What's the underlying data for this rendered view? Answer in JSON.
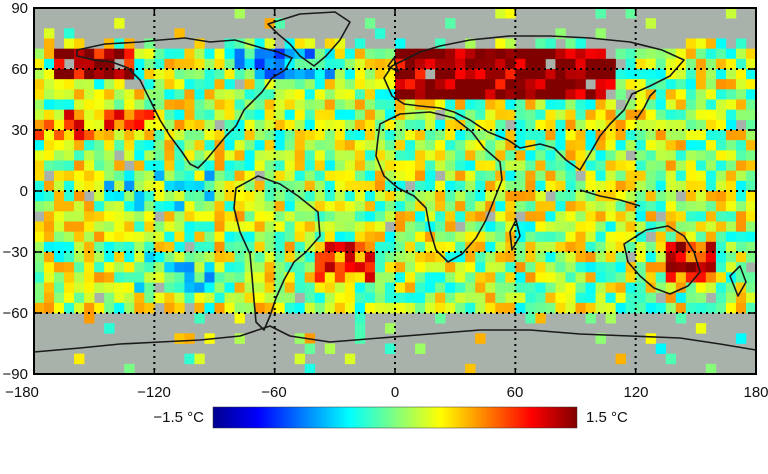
{
  "map": {
    "type": "gridded-anomaly-map",
    "projection": "equirectangular",
    "lon_range": [
      -180,
      180
    ],
    "lat_range": [
      -90,
      90
    ],
    "no_data_color": "#a9b1ab",
    "gridlines": "dotted at 60° longitude and 30° latitude",
    "x_ticks": [
      "−180",
      "−120",
      "−60",
      "0",
      "60",
      "120",
      "180"
    ],
    "y_ticks": [
      "90",
      "60",
      "30",
      "0",
      "−30",
      "−60",
      "−90"
    ]
  },
  "colorbar": {
    "min_label": "−1.5 °C",
    "max_label": "1.5 °C",
    "min_value": -1.5,
    "max_value": 1.5,
    "stops": [
      "#00008f",
      "#0000ff",
      "#0080ff",
      "#00ffff",
      "#80ff80",
      "#ffff00",
      "#ff8000",
      "#ff0000",
      "#800000"
    ]
  },
  "anomaly_regions": [
    {
      "region": "Northern Eurasia",
      "lon": [
        0,
        110
      ],
      "lat": [
        45,
        70
      ],
      "value": 1.4
    },
    {
      "region": "Alaska / NW Canada",
      "lon": [
        -170,
        -130
      ],
      "lat": [
        55,
        72
      ],
      "value": 1.3
    },
    {
      "region": "North Pacific",
      "lon": [
        -180,
        -120
      ],
      "lat": [
        25,
        40
      ],
      "value": 0.6
    },
    {
      "region": "Southern Ocean near Australia",
      "lon": [
        135,
        160
      ],
      "lat": [
        -45,
        -25
      ],
      "value": 0.9
    },
    {
      "region": "South Atlantic",
      "lon": [
        -40,
        -10
      ],
      "lat": [
        -45,
        -25
      ],
      "value": 0.7
    },
    {
      "region": "NE Canada / Greenland",
      "lon": [
        -80,
        -30
      ],
      "lat": [
        55,
        72
      ],
      "value": -0.6
    },
    {
      "region": "Tropical Pacific",
      "lon": [
        -150,
        -90
      ],
      "lat": [
        -10,
        10
      ],
      "value": -0.3
    },
    {
      "region": "South Pacific",
      "lon": [
        -130,
        -90
      ],
      "lat": [
        -50,
        -30
      ],
      "value": -0.4
    }
  ]
}
